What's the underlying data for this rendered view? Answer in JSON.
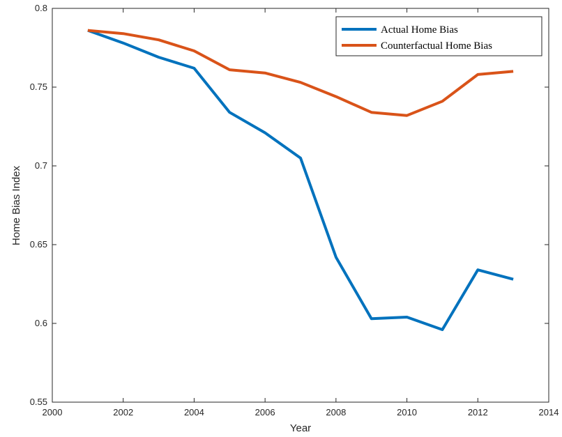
{
  "chart_data": {
    "type": "line",
    "xlabel": "Year",
    "ylabel": "Home Bias Index",
    "xlim": [
      2000,
      2014
    ],
    "ylim": [
      0.55,
      0.8
    ],
    "xticks": [
      "2000",
      "2002",
      "2004",
      "2006",
      "2008",
      "2010",
      "2012",
      "2014"
    ],
    "yticks": [
      "0.55",
      "0.6",
      "0.65",
      "0.7",
      "0.75",
      "0.8"
    ],
    "grid": false,
    "legend_position": "top-right",
    "x": [
      2001,
      2002,
      2003,
      2004,
      2005,
      2006,
      2007,
      2008,
      2009,
      2010,
      2011,
      2012,
      2013
    ],
    "series": [
      {
        "name": "Actual Home Bias",
        "color": "#0072BD",
        "values": [
          0.786,
          0.778,
          0.769,
          0.762,
          0.734,
          0.721,
          0.705,
          0.642,
          0.603,
          0.604,
          0.596,
          0.634,
          0.628
        ]
      },
      {
        "name": "Counterfactual Home Bias",
        "color": "#D95319",
        "values": [
          0.786,
          0.784,
          0.78,
          0.773,
          0.761,
          0.759,
          0.753,
          0.744,
          0.734,
          0.732,
          0.741,
          0.758,
          0.76
        ]
      }
    ]
  }
}
